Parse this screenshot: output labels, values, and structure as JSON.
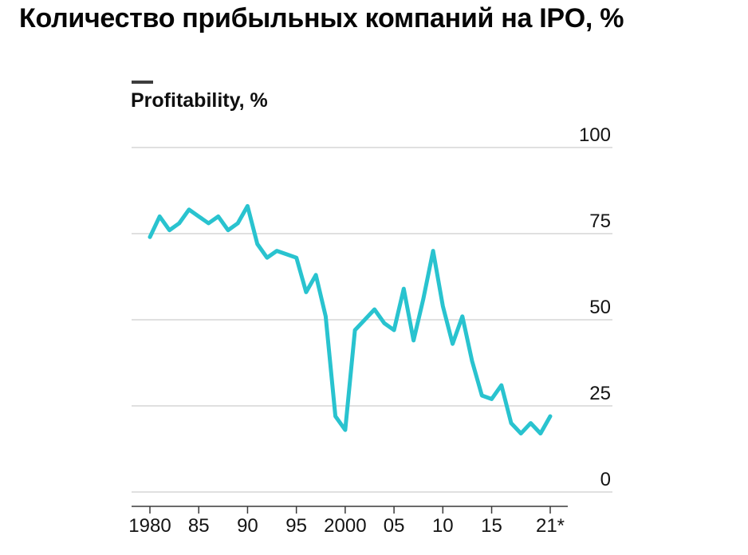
{
  "page": {
    "title": "Количество прибыльных компаний на IPO, %"
  },
  "chart": {
    "series_label": "Profitability, %"
  },
  "chart_data": {
    "type": "line",
    "title": "Количество прибыльных компаний на IPO, %",
    "subtitle": "Profitability, %",
    "xlabel": "",
    "ylabel": "Profitability, %",
    "ylim": [
      0,
      100
    ],
    "xlim": [
      1980,
      2021
    ],
    "grid": "horizontal",
    "legend_position": "top-left",
    "y_ticks": [
      0,
      25,
      50,
      75,
      100
    ],
    "x_ticks": {
      "years": [
        1980,
        1985,
        1990,
        1995,
        2000,
        2005,
        2010,
        2015,
        2021
      ],
      "labels": [
        "1980",
        "85",
        "90",
        "95",
        "2000",
        "05",
        "10",
        "15",
        "21*"
      ]
    },
    "line_color": "#29c3cf",
    "series": [
      {
        "name": "Profitability, %",
        "x": [
          1980,
          1981,
          1982,
          1983,
          1984,
          1985,
          1986,
          1987,
          1988,
          1989,
          1990,
          1991,
          1992,
          1993,
          1994,
          1995,
          1996,
          1997,
          1998,
          1999,
          2000,
          2001,
          2002,
          2003,
          2004,
          2005,
          2006,
          2007,
          2008,
          2009,
          2010,
          2011,
          2012,
          2013,
          2014,
          2015,
          2016,
          2017,
          2018,
          2019,
          2020,
          2021
        ],
        "values": [
          74,
          80,
          76,
          78,
          82,
          80,
          78,
          80,
          76,
          78,
          83,
          72,
          68,
          70,
          69,
          68,
          58,
          63,
          51,
          22,
          18,
          47,
          50,
          53,
          49,
          47,
          59,
          44,
          56,
          70,
          54,
          43,
          51,
          38,
          28,
          27,
          31,
          20,
          17,
          20,
          17,
          22
        ]
      }
    ]
  }
}
